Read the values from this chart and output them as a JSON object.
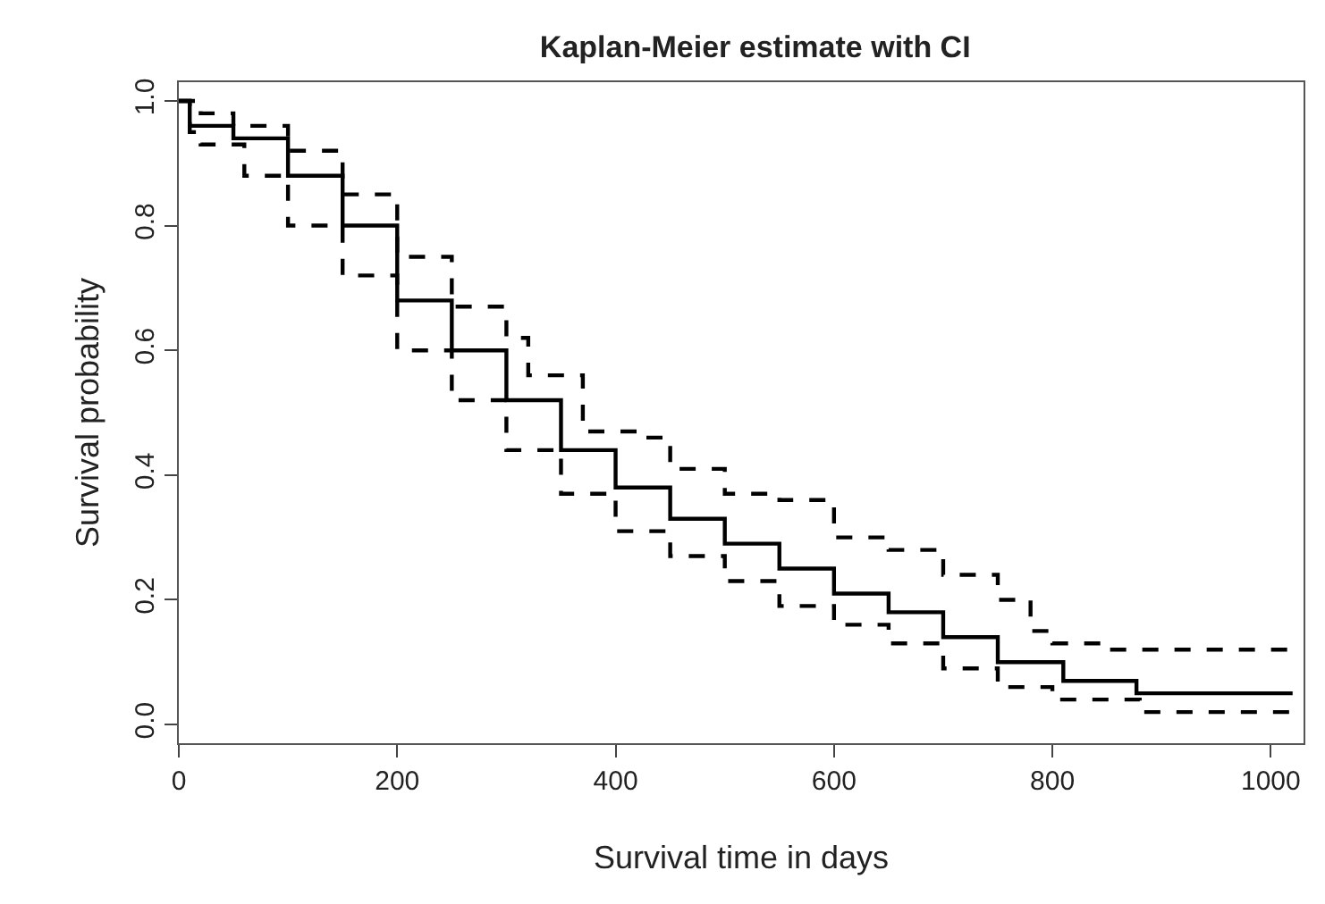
{
  "chart_data": {
    "type": "step",
    "title": "Kaplan-Meier estimate with CI",
    "xlabel": "Survival time in days",
    "ylabel": "Survival probability",
    "xlim": [
      0,
      1030
    ],
    "ylim": [
      -0.03,
      1.03
    ],
    "xticks": [
      0,
      200,
      400,
      600,
      800,
      1000
    ],
    "yticks": [
      {
        "value": 0.0,
        "label": "0.0"
      },
      {
        "value": 0.2,
        "label": "0.2"
      },
      {
        "value": 0.4,
        "label": "0.4"
      },
      {
        "value": 0.6,
        "label": "0.6"
      },
      {
        "value": 0.8,
        "label": "0.8"
      },
      {
        "value": 1.0,
        "label": "1.0"
      }
    ],
    "marker": "none",
    "series": [
      {
        "color": "#000000",
        "line_style": "solid",
        "x": [
          0,
          10,
          50,
          100,
          150,
          200,
          250,
          300,
          350,
          400,
          450,
          500,
          550,
          600,
          650,
          700,
          750,
          810,
          877,
          1020
        ],
        "values": [
          1.0,
          0.96,
          0.94,
          0.88,
          0.8,
          0.68,
          0.6,
          0.52,
          0.44,
          0.38,
          0.33,
          0.29,
          0.25,
          0.21,
          0.18,
          0.14,
          0.1,
          0.07,
          0.05,
          0.05
        ]
      },
      {
        "color": "#000000",
        "line_style": "dashed",
        "x": [
          0,
          20,
          50,
          100,
          150,
          200,
          250,
          300,
          320,
          370,
          420,
          450,
          500,
          550,
          600,
          650,
          700,
          750,
          780,
          800,
          850,
          1020
        ],
        "values": [
          1.0,
          0.98,
          0.96,
          0.92,
          0.85,
          0.75,
          0.67,
          0.62,
          0.56,
          0.47,
          0.46,
          0.41,
          0.37,
          0.36,
          0.3,
          0.28,
          0.24,
          0.2,
          0.15,
          0.13,
          0.12,
          0.12
        ]
      },
      {
        "color": "#000000",
        "line_style": "dashed",
        "x": [
          0,
          10,
          20,
          60,
          100,
          150,
          200,
          250,
          300,
          350,
          400,
          450,
          500,
          550,
          600,
          650,
          700,
          750,
          800,
          880,
          1020
        ],
        "values": [
          1.0,
          0.95,
          0.93,
          0.88,
          0.8,
          0.72,
          0.6,
          0.52,
          0.44,
          0.37,
          0.31,
          0.27,
          0.23,
          0.19,
          0.16,
          0.13,
          0.09,
          0.06,
          0.04,
          0.02,
          0.02
        ]
      }
    ]
  }
}
